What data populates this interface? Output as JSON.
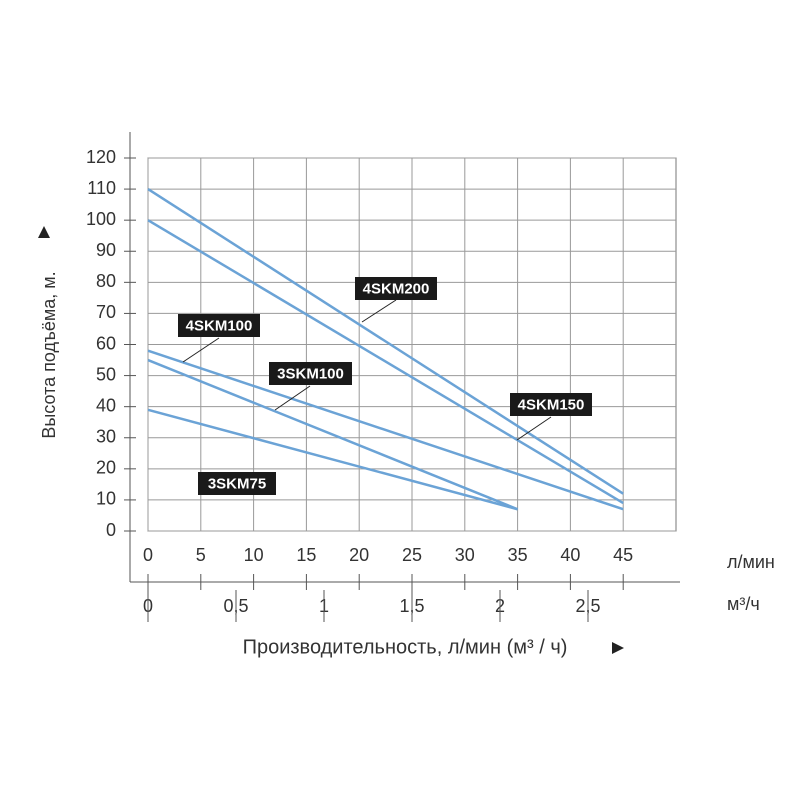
{
  "chart_data": {
    "type": "line",
    "y_label": "Высота подъёма, м.",
    "x_label": "Производительность, л/мин (м³ / ч)",
    "x_unit": "л/мин",
    "x2_unit": "м³/ч",
    "xlim": [
      0,
      50
    ],
    "xticks": [
      0,
      5,
      10,
      15,
      20,
      25,
      30,
      35,
      40,
      45
    ],
    "x2lim": [
      0,
      3
    ],
    "x2ticks": [
      0,
      {
        "value": 0.5,
        "label": "0,5"
      },
      1,
      {
        "value": 1.5,
        "label": "1,5"
      },
      2,
      {
        "value": 2.5,
        "label": "2,5"
      }
    ],
    "ylim": [
      0,
      120
    ],
    "yticks": [
      0,
      10,
      20,
      30,
      40,
      50,
      60,
      70,
      80,
      90,
      100,
      110,
      120
    ],
    "grid": true,
    "series": [
      {
        "name": "4SKM200",
        "color": "#6ba3d6",
        "x": [
          0,
          45
        ],
        "values": [
          110,
          12
        ]
      },
      {
        "name": "4SKM150",
        "color": "#6ba3d6",
        "x": [
          0,
          45
        ],
        "values": [
          100,
          9
        ]
      },
      {
        "name": "4SKM100",
        "color": "#6ba3d6",
        "x": [
          0,
          45
        ],
        "values": [
          58,
          7
        ]
      },
      {
        "name": "3SKM100",
        "color": "#6ba3d6",
        "x": [
          0,
          35
        ],
        "values": [
          55,
          7
        ]
      },
      {
        "name": "3SKM75",
        "color": "#6ba3d6",
        "x": [
          0,
          35
        ],
        "values": [
          39,
          7
        ]
      }
    ]
  }
}
